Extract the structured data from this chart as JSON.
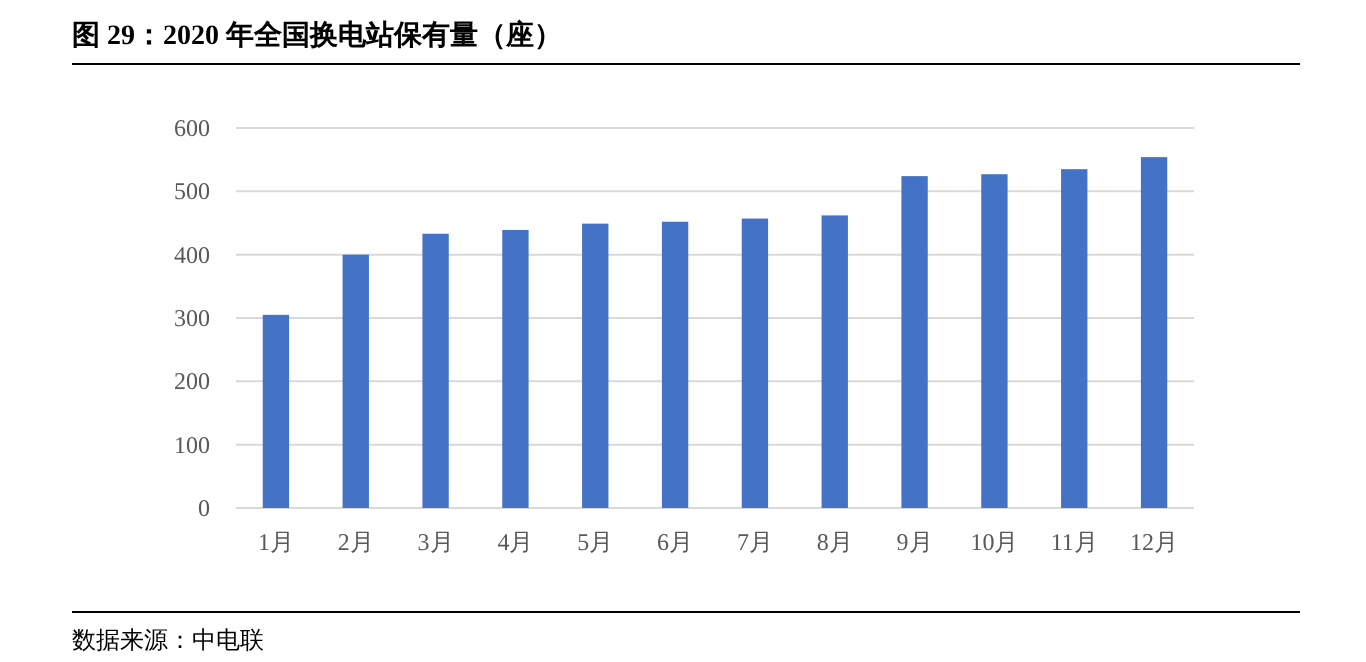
{
  "chart_data": {
    "type": "bar",
    "title": "图 29：2020 年全国换电站保有量（座）",
    "categories": [
      "1月",
      "2月",
      "3月",
      "4月",
      "5月",
      "6月",
      "7月",
      "8月",
      "9月",
      "10月",
      "11月",
      "12月"
    ],
    "values": [
      305,
      400,
      433,
      439,
      449,
      452,
      457,
      462,
      524,
      527,
      535,
      554
    ],
    "color": "#4472c4",
    "ylim": [
      0,
      600
    ],
    "yticks": [
      0,
      100,
      200,
      300,
      400,
      500,
      600
    ],
    "grid": "y",
    "annotations": [
      "数据来源：中电联"
    ]
  }
}
